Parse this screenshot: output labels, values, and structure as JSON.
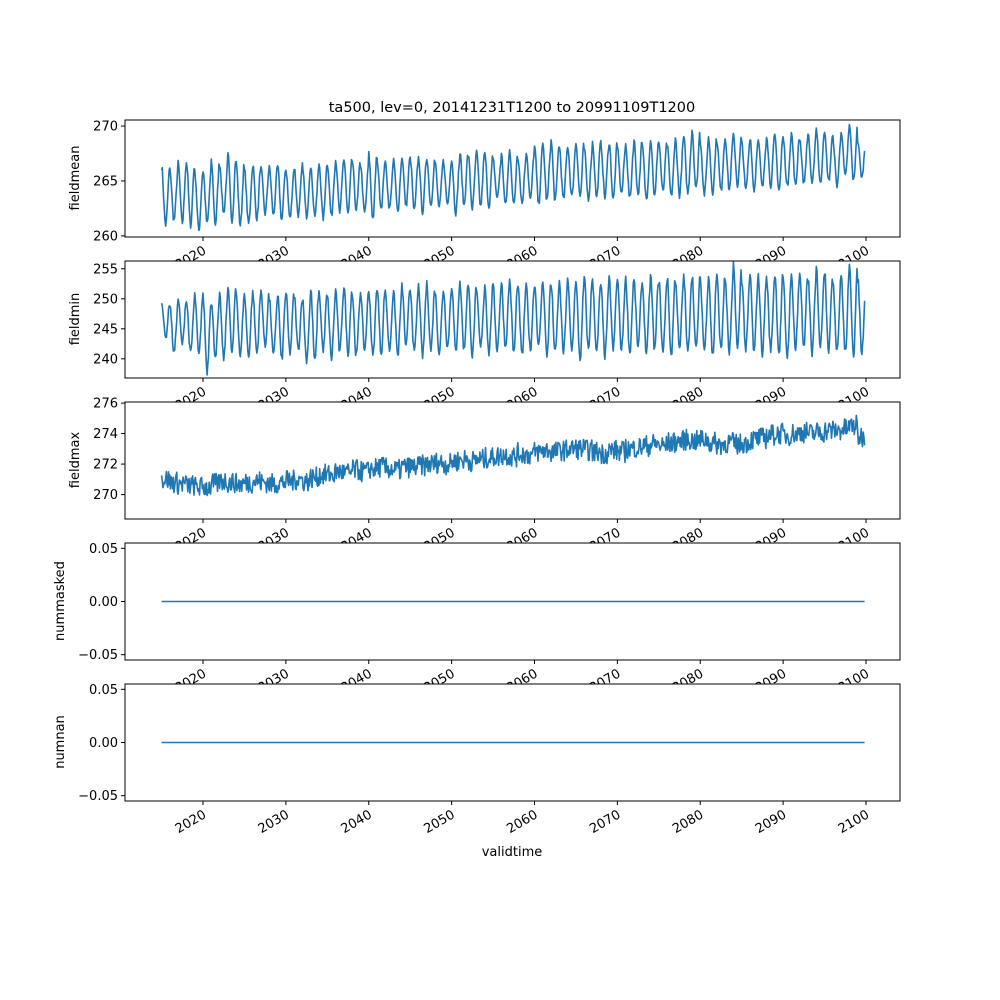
{
  "chart_data": {
    "type": "line",
    "title": "ta500, lev=0, 20141231T1200 to 20991109T1200",
    "xlabel": "validtime",
    "x_range": [
      2015.0,
      2099.85
    ],
    "x_ticks": [
      2020,
      2030,
      2040,
      2050,
      2060,
      2070,
      2080,
      2090,
      2100
    ],
    "line_color": "#1f77b4",
    "sampling": "monthly, Jan 2015 to Nov 2099",
    "panels": [
      {
        "ylabel": "fieldmean",
        "ylim": [
          259.9,
          270.55
        ],
        "yticks": [
          260,
          265,
          270
        ],
        "ytick_labels": [
          "260",
          "265",
          "270"
        ],
        "model": "seasonal",
        "annual_peaks": [
          266.3,
          266.0,
          266.6,
          266.7,
          265.8,
          265.9,
          266.7,
          266.5,
          267.3,
          266.6,
          266.0,
          266.5,
          266.1,
          266.2,
          266.3,
          266.0,
          266.2,
          266.4,
          266.1,
          266.6,
          266.6,
          266.9,
          267.0,
          266.8,
          266.5,
          267.4,
          266.9,
          266.6,
          266.8,
          267.2,
          267.0,
          267.1,
          267.1,
          266.7,
          266.8,
          266.9,
          267.5,
          267.3,
          267.6,
          267.4,
          266.9,
          267.4,
          267.8,
          267.1,
          267.7,
          268.1,
          268.3,
          268.6,
          268.0,
          268.2,
          268.5,
          267.9,
          268.5,
          268.4,
          268.5,
          268.0,
          268.3,
          268.7,
          268.2,
          268.9,
          268.5,
          268.2,
          268.8,
          269.0,
          269.7,
          268.6,
          268.9,
          268.7,
          269.0,
          269.1,
          268.5,
          269.0,
          268.6,
          269.2,
          269.0,
          268.9,
          269.3,
          268.8,
          269.4,
          269.8,
          269.2,
          268.9,
          269.6,
          270.0,
          268.6
        ],
        "annual_troughs": [
          261.0,
          261.4,
          261.2,
          261.0,
          260.5,
          261.1,
          261.1,
          262.1,
          261.5,
          261.0,
          261.1,
          261.6,
          262.0,
          261.9,
          261.5,
          261.6,
          261.9,
          261.8,
          261.9,
          261.6,
          261.8,
          262.1,
          262.0,
          262.4,
          262.1,
          261.6,
          262.6,
          262.5,
          262.2,
          262.7,
          262.3,
          262.2,
          262.8,
          262.6,
          262.9,
          262.1,
          262.8,
          262.5,
          262.7,
          262.7,
          263.5,
          262.8,
          262.8,
          263.0,
          263.3,
          262.9,
          263.2,
          263.2,
          263.3,
          263.6,
          263.6,
          263.4,
          263.5,
          263.5,
          263.3,
          263.9,
          263.4,
          263.8,
          263.4,
          263.6,
          264.0,
          263.6,
          263.7,
          263.9,
          264.3,
          263.8,
          264.0,
          264.1,
          264.2,
          264.6,
          264.2,
          264.2,
          264.4,
          264.6,
          264.2,
          264.5,
          264.5,
          264.8,
          264.6,
          264.7,
          265.0,
          264.6,
          265.4,
          265.0,
          265.3
        ]
      },
      {
        "ylabel": "fieldmin",
        "ylim": [
          236.8,
          256.3
        ],
        "yticks": [
          240,
          245,
          250,
          255
        ],
        "ytick_labels": [
          "240",
          "245",
          "250",
          "255"
        ],
        "model": "seasonal",
        "annual_peaks": [
          249.5,
          249.0,
          250.0,
          249.5,
          250.6,
          250.3,
          249.3,
          250.5,
          252.5,
          251.0,
          250.5,
          251.0,
          251.2,
          249.8,
          250.8,
          251.0,
          250.5,
          250.0,
          251.4,
          251.0,
          250.3,
          251.5,
          252.0,
          250.7,
          251.2,
          251.3,
          252.0,
          251.0,
          250.8,
          252.1,
          251.5,
          252.1,
          252.4,
          251.0,
          251.5,
          252.2,
          252.5,
          252.0,
          251.0,
          252.3,
          252.0,
          252.6,
          253.0,
          251.8,
          252.0,
          252.5,
          253.0,
          252.2,
          252.6,
          253.0,
          252.5,
          253.5,
          252.8,
          252.0,
          253.3,
          253.0,
          253.2,
          253.0,
          252.5,
          253.8,
          253.0,
          253.5,
          253.2,
          253.7,
          253.9,
          253.0,
          254.0,
          253.6,
          253.2,
          255.5,
          253.2,
          254.0,
          253.6,
          253.5,
          254.2,
          253.0,
          253.8,
          254.5,
          253.2,
          255.0,
          254.6,
          253.2,
          254.0,
          255.2,
          253.4
        ],
        "annual_troughs": [
          243.5,
          241.0,
          242.5,
          241.0,
          240.5,
          238.0,
          240.5,
          240.0,
          241.0,
          240.5,
          240.5,
          241.0,
          242.0,
          240.5,
          239.8,
          241.0,
          241.5,
          239.8,
          239.5,
          241.5,
          240.0,
          241.0,
          241.0,
          240.5,
          241.5,
          240.5,
          241.0,
          241.5,
          240.5,
          242.0,
          241.0,
          240.5,
          241.5,
          241.0,
          242.0,
          241.2,
          241.5,
          240.5,
          242.0,
          241.0,
          241.5,
          242.0,
          241.0,
          240.5,
          241.5,
          242.0,
          240.5,
          241.0,
          241.0,
          241.5,
          240.0,
          241.5,
          241.0,
          240.5,
          241.5,
          241.5,
          241.0,
          242.0,
          241.0,
          241.5,
          241.0,
          240.5,
          241.5,
          241.0,
          241.5,
          241.5,
          240.5,
          241.5,
          241.0,
          241.5,
          241.5,
          241.0,
          241.0,
          241.5,
          241.0,
          240.5,
          241.5,
          241.5,
          241.0,
          242.0,
          241.5,
          241.5,
          241.0,
          241.0,
          241.0
        ]
      },
      {
        "ylabel": "fieldmax",
        "ylim": [
          268.4,
          276.07
        ],
        "yticks": [
          270,
          272,
          274,
          276
        ],
        "ytick_labels": [
          "270",
          "272",
          "274",
          "276"
        ],
        "model": "noisy",
        "noise_amplitude": 0.7,
        "annual_means": [
          271.0,
          270.8,
          270.7,
          270.6,
          270.5,
          270.5,
          270.7,
          270.9,
          270.8,
          270.7,
          270.8,
          270.9,
          270.8,
          270.7,
          270.8,
          270.9,
          271.0,
          270.9,
          271.1,
          271.3,
          271.3,
          271.5,
          271.4,
          271.6,
          271.5,
          271.7,
          271.8,
          271.7,
          271.6,
          271.8,
          271.8,
          271.9,
          272.0,
          272.1,
          272.0,
          272.2,
          272.3,
          272.2,
          272.3,
          272.4,
          272.5,
          272.6,
          272.5,
          272.7,
          272.6,
          272.8,
          272.9,
          272.8,
          272.9,
          273.0,
          273.0,
          272.9,
          272.8,
          272.7,
          272.9,
          272.8,
          273.0,
          273.1,
          273.2,
          273.3,
          273.2,
          273.4,
          273.5,
          273.6,
          273.5,
          273.6,
          273.4,
          273.3,
          273.4,
          273.3,
          273.4,
          273.6,
          273.7,
          273.9,
          274.0,
          273.9,
          274.0,
          274.1,
          274.0,
          274.1,
          274.2,
          274.2,
          274.3,
          274.5,
          273.8
        ]
      },
      {
        "ylabel": "nummasked",
        "ylim": [
          -0.055,
          0.055
        ],
        "yticks": [
          -0.05,
          0,
          0.05
        ],
        "ytick_labels": [
          "−0.05",
          "0.00",
          "0.05"
        ],
        "model": "constant",
        "value": 0
      },
      {
        "ylabel": "numnan",
        "ylim": [
          -0.055,
          0.055
        ],
        "yticks": [
          -0.05,
          0,
          0.05
        ],
        "ytick_labels": [
          "−0.05",
          "0.00",
          "0.05"
        ],
        "model": "constant",
        "value": 0
      }
    ]
  }
}
